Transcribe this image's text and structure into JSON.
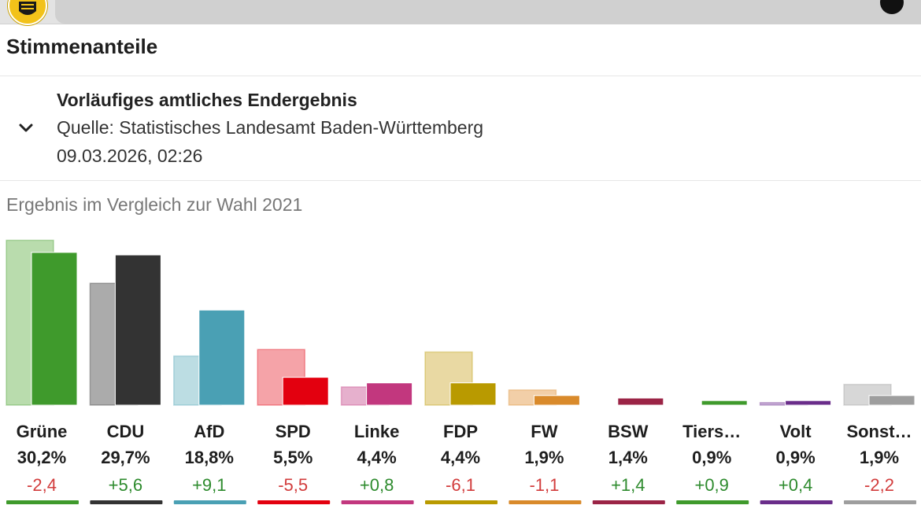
{
  "header": {
    "section_title": "Stimmenanteile"
  },
  "info": {
    "heading": "Vorläufiges amtliches Endergebnis",
    "source": "Quelle: Statistisches Landesamt Baden-Württemberg",
    "date": "09.03.2026, 02:26"
  },
  "chart_data": {
    "type": "bar",
    "subtitle": "Ergebnis im Vergleich zur Wahl 2021",
    "categories": [
      "Grüne",
      "CDU",
      "AfD",
      "SPD",
      "Linke",
      "FDP",
      "FW",
      "BSW",
      "Tiers…",
      "Volt",
      "Sonst…"
    ],
    "series": [
      {
        "values": [
          32.6,
          24.1,
          9.7,
          11.0,
          3.6,
          10.5,
          3.0,
          0.0,
          0.0,
          0.5,
          4.1
        ]
      },
      {
        "values": [
          30.2,
          29.7,
          18.8,
          5.5,
          4.4,
          4.4,
          1.9,
          1.4,
          0.9,
          0.9,
          1.9
        ]
      }
    ],
    "value_labels": [
      "30,2%",
      "29,7%",
      "18,8%",
      "5,5%",
      "4,4%",
      "4,4%",
      "1,9%",
      "1,4%",
      "0,9%",
      "0,9%",
      "1,9%"
    ],
    "diff_labels": [
      "-2,4",
      "+5,6",
      "+9,1",
      "-5,5",
      "+0,8",
      "-6,1",
      "-1,1",
      "+1,4",
      "+0,9",
      "+0,4",
      "-2,2"
    ],
    "colors": [
      "#3f9a2c",
      "#333333",
      "#4aa0b4",
      "#e3000f",
      "#c2377e",
      "#b99a00",
      "#d98a2b",
      "#9b2446",
      "#3f9a2c",
      "#6a2d8a",
      "#9e9e9e"
    ],
    "colors_2021": [
      "#b9dcad",
      "#ababab",
      "#bcdde3",
      "#f5a3a8",
      "#e6b0cd",
      "#e9d9a3",
      "#f2cfa8",
      "#d9a8b6",
      "#b9dcad",
      "#c9b0d8",
      "#d7d7d7"
    ],
    "diff_colors": {
      "positive": "#2e8b2e",
      "negative": "#d23c3c"
    },
    "ylim": [
      0,
      35
    ]
  }
}
